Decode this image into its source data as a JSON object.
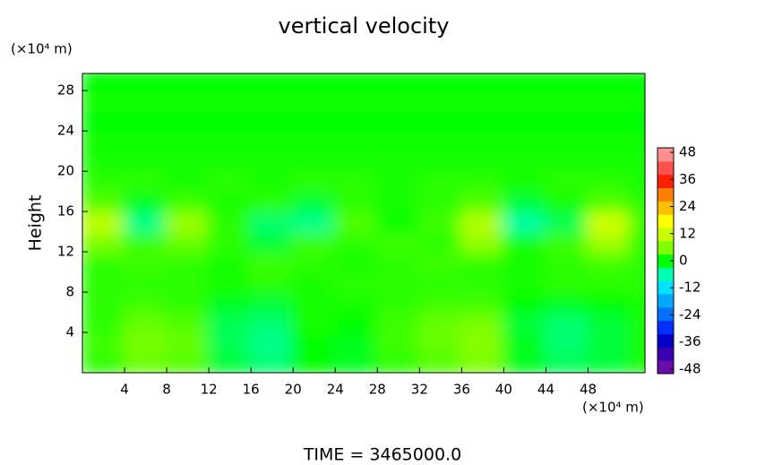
{
  "chart_data": {
    "type": "heatmap",
    "title": "vertical velocity",
    "y_unit": "(×10⁴ m)",
    "x_unit": "(×10⁴ m)",
    "ylabel": "Height",
    "footer": "TIME = 3465000.0",
    "xlim": [
      0,
      53.4
    ],
    "ylim": [
      0,
      29.7
    ],
    "xticks": [
      4,
      8,
      12,
      16,
      20,
      24,
      28,
      32,
      36,
      40,
      44,
      48
    ],
    "yticks": [
      4,
      8,
      12,
      16,
      20,
      24,
      28
    ],
    "x": [
      2,
      6,
      10,
      14,
      18,
      22,
      26,
      30,
      34,
      38,
      42,
      46,
      50,
      54
    ],
    "y": [
      1,
      3,
      5,
      7,
      9,
      11,
      13,
      15,
      17,
      19,
      21,
      23,
      25,
      27,
      29
    ],
    "z": [
      [
        2,
        5,
        4,
        -2,
        -4,
        0,
        -1,
        2,
        4,
        6,
        -1,
        -3,
        -2,
        1
      ],
      [
        3,
        6,
        5,
        -3,
        -5,
        0,
        -1,
        3,
        5,
        7,
        -1,
        -4,
        -2,
        1
      ],
      [
        2,
        5,
        4,
        -3,
        -4,
        1,
        0,
        3,
        5,
        6,
        -2,
        -4,
        -2,
        1
      ],
      [
        2,
        3,
        2,
        -1,
        -2,
        1,
        1,
        2,
        3,
        3,
        0,
        -1,
        0,
        1
      ],
      [
        2,
        2,
        2,
        1,
        2,
        1,
        2,
        2,
        2,
        2,
        1,
        2,
        2,
        2
      ],
      [
        2,
        3,
        2,
        1,
        3,
        2,
        1,
        2,
        3,
        2,
        1,
        2,
        3,
        2
      ],
      [
        6,
        3,
        5,
        2,
        -2,
        3,
        2,
        3,
        2,
        8,
        1,
        3,
        9,
        2
      ],
      [
        12,
        -5,
        9,
        2,
        -4,
        -5,
        4,
        0,
        3,
        11,
        -6,
        -3,
        14,
        3
      ],
      [
        4,
        -1,
        3,
        1,
        2,
        -2,
        2,
        1,
        2,
        4,
        -2,
        1,
        4,
        2
      ],
      [
        2,
        2,
        1,
        2,
        1,
        2,
        2,
        1,
        2,
        2,
        1,
        2,
        2,
        1
      ],
      [
        1,
        1,
        1,
        1,
        1,
        1,
        1,
        1,
        1,
        1,
        1,
        1,
        1,
        1
      ],
      [
        0.5,
        0.5,
        0.5,
        0.5,
        0.5,
        0.5,
        0.5,
        0.5,
        0.5,
        0.5,
        0.5,
        0.5,
        0.5,
        0.5
      ],
      [
        0,
        0,
        0,
        0,
        0,
        0,
        0,
        0,
        0,
        0,
        0,
        0,
        0,
        0
      ],
      [
        0.5,
        0.5,
        0.5,
        0.5,
        0.5,
        0.5,
        0.5,
        0.5,
        0.5,
        0.5,
        0.5,
        0.5,
        0.5,
        0.5
      ],
      [
        0,
        0,
        0,
        0,
        0,
        0,
        0,
        0,
        0,
        0,
        0,
        0,
        0,
        0
      ]
    ],
    "clim": [
      -50,
      50
    ],
    "cticks": [
      48,
      36,
      24,
      12,
      0,
      -12,
      -24,
      -36,
      -48
    ],
    "colors": [
      "#6a0dad",
      "#3a00b0",
      "#0000c8",
      "#0030ff",
      "#0070ff",
      "#00a8ff",
      "#00e0ff",
      "#00ffb0",
      "#00ff00",
      "#7fff00",
      "#c8ff00",
      "#ffff00",
      "#ffc000",
      "#ff8000",
      "#ff2000",
      "#ff5050",
      "#ff9090"
    ]
  }
}
